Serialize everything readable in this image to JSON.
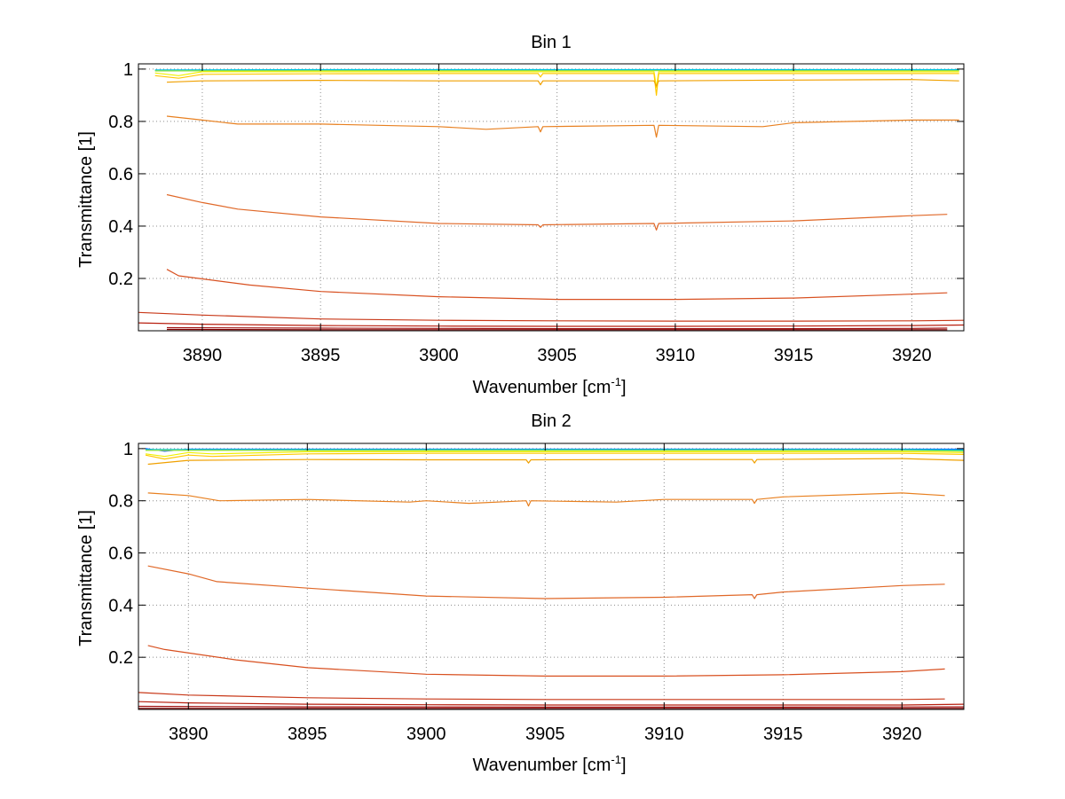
{
  "chart_data": [
    {
      "type": "line",
      "title": "Bin 1",
      "xlabel_main": "Wavenumber [cm",
      "xlabel_sup": "-1",
      "xlabel_end": "]",
      "ylabel": "Transmittance [1]",
      "xlim": [
        3887.3,
        3922.2
      ],
      "ylim": [
        0,
        1.02
      ],
      "xticks": [
        3890,
        3895,
        3900,
        3905,
        3910,
        3915,
        3920
      ],
      "yticks": [
        0.2,
        0.4,
        0.6,
        0.8,
        1
      ],
      "grid": true,
      "series": [
        {
          "color": "#00b4ff",
          "x": [
            3888,
            3895,
            3900,
            3905,
            3910,
            3915,
            3920,
            3922
          ],
          "y": [
            0.997,
            0.998,
            0.998,
            0.998,
            0.998,
            0.998,
            0.998,
            0.998
          ]
        },
        {
          "color": "#00d8c0",
          "x": [
            3888,
            3895,
            3900,
            3905,
            3910,
            3915,
            3920,
            3922
          ],
          "y": [
            0.995,
            0.996,
            0.996,
            0.996,
            0.996,
            0.996,
            0.996,
            0.996
          ]
        },
        {
          "color": "#a0e040",
          "x": [
            3888,
            3895,
            3900,
            3905,
            3910,
            3915,
            3920,
            3922
          ],
          "y": [
            0.993,
            0.994,
            0.994,
            0.994,
            0.994,
            0.994,
            0.994,
            0.994
          ]
        },
        {
          "color": "#f0f000",
          "x": [
            3888,
            3889,
            3890,
            3895,
            3900,
            3905,
            3909.1,
            3909.2,
            3909.3,
            3915,
            3920,
            3922
          ],
          "y": [
            0.985,
            0.975,
            0.99,
            0.99,
            0.99,
            0.99,
            0.99,
            0.93,
            0.99,
            0.99,
            0.99,
            0.99
          ]
        },
        {
          "color": "#ffc800",
          "x": [
            3888,
            3889,
            3890,
            3895,
            3900,
            3904.2,
            3904.3,
            3904.4,
            3909.1,
            3909.2,
            3909.3,
            3915,
            3920,
            3922
          ],
          "y": [
            0.975,
            0.965,
            0.98,
            0.982,
            0.983,
            0.983,
            0.97,
            0.983,
            0.983,
            0.9,
            0.983,
            0.983,
            0.983,
            0.983
          ]
        },
        {
          "color": "#f0a000",
          "x": [
            3888.5,
            3890,
            3895,
            3900,
            3904.2,
            3904.3,
            3904.4,
            3909.1,
            3909.2,
            3909.3,
            3915,
            3920,
            3922
          ],
          "y": [
            0.95,
            0.955,
            0.957,
            0.955,
            0.955,
            0.94,
            0.955,
            0.955,
            0.935,
            0.955,
            0.958,
            0.96,
            0.955
          ]
        },
        {
          "color": "#e88020",
          "x": [
            3888.5,
            3890,
            3891.5,
            3895,
            3900,
            3902,
            3904.2,
            3904.3,
            3904.4,
            3909.1,
            3909.2,
            3909.3,
            3913.7,
            3915,
            3920,
            3922
          ],
          "y": [
            0.82,
            0.805,
            0.79,
            0.79,
            0.78,
            0.77,
            0.78,
            0.76,
            0.78,
            0.785,
            0.74,
            0.785,
            0.78,
            0.795,
            0.805,
            0.805
          ]
        },
        {
          "color": "#e06828",
          "x": [
            3888.5,
            3890,
            3891.5,
            3895,
            3900,
            3904.2,
            3904.3,
            3904.4,
            3909.1,
            3909.2,
            3909.3,
            3915,
            3920,
            3921.5
          ],
          "y": [
            0.52,
            0.49,
            0.465,
            0.435,
            0.41,
            0.405,
            0.395,
            0.405,
            0.41,
            0.385,
            0.41,
            0.42,
            0.44,
            0.445
          ]
        },
        {
          "color": "#d85020",
          "x": [
            3888.5,
            3889,
            3892,
            3895,
            3900,
            3905,
            3910,
            3915,
            3920,
            3921.5
          ],
          "y": [
            0.235,
            0.21,
            0.175,
            0.15,
            0.13,
            0.12,
            0.12,
            0.125,
            0.14,
            0.145
          ]
        },
        {
          "color": "#c83818",
          "x": [
            3887.3,
            3890,
            3895,
            3900,
            3905,
            3910,
            3915,
            3920,
            3922.2
          ],
          "y": [
            0.07,
            0.06,
            0.045,
            0.04,
            0.038,
            0.037,
            0.037,
            0.038,
            0.04
          ]
        },
        {
          "color": "#b82010",
          "x": [
            3887.3,
            3890,
            3895,
            3900,
            3905,
            3910,
            3915,
            3920,
            3922.2
          ],
          "y": [
            0.03,
            0.025,
            0.02,
            0.018,
            0.017,
            0.017,
            0.018,
            0.02,
            0.022
          ]
        },
        {
          "color": "#a01010",
          "x": [
            3888.5,
            3895,
            3900,
            3905,
            3910,
            3915,
            3920,
            3921.5
          ],
          "y": [
            0.012,
            0.01,
            0.009,
            0.008,
            0.008,
            0.008,
            0.009,
            0.01
          ]
        },
        {
          "color": "#800000",
          "x": [
            3888.5,
            3895,
            3905,
            3915,
            3921.5
          ],
          "y": [
            0.005,
            0.004,
            0.004,
            0.004,
            0.004
          ]
        }
      ]
    },
    {
      "type": "line",
      "title": "Bin 2",
      "xlabel_main": "Wavenumber [cm",
      "xlabel_sup": "-1",
      "xlabel_end": "]",
      "ylabel": "Transmittance [1]",
      "xlim": [
        3887.9,
        3922.6
      ],
      "ylim": [
        0,
        1.02
      ],
      "xticks": [
        3890,
        3895,
        3900,
        3905,
        3910,
        3915,
        3920
      ],
      "yticks": [
        0.2,
        0.4,
        0.6,
        0.8,
        1
      ],
      "grid": true,
      "series": [
        {
          "color": "#0050ff",
          "x": [
            3888.2,
            3889,
            3890,
            3895,
            3900,
            3905,
            3910,
            3915,
            3920,
            3922.6
          ],
          "y": [
            1.0,
            0.99,
            0.998,
            0.998,
            0.998,
            0.998,
            0.998,
            0.998,
            0.998,
            0.998
          ]
        },
        {
          "color": "#00b4ff",
          "x": [
            3888.2,
            3895,
            3900,
            3905,
            3910,
            3915,
            3920,
            3922.6
          ],
          "y": [
            0.997,
            0.997,
            0.997,
            0.997,
            0.997,
            0.997,
            0.997,
            0.995
          ]
        },
        {
          "color": "#00d8c0",
          "x": [
            3888.2,
            3895,
            3900,
            3905,
            3910,
            3915,
            3920,
            3922.6
          ],
          "y": [
            0.995,
            0.995,
            0.995,
            0.995,
            0.995,
            0.995,
            0.995,
            0.993
          ]
        },
        {
          "color": "#a0e040",
          "x": [
            3888.2,
            3895,
            3900,
            3905,
            3910,
            3915,
            3920,
            3922.6
          ],
          "y": [
            0.993,
            0.993,
            0.993,
            0.993,
            0.993,
            0.993,
            0.993,
            0.99
          ]
        },
        {
          "color": "#f0f000",
          "x": [
            3888.2,
            3889,
            3890,
            3891,
            3895,
            3900,
            3905,
            3910,
            3915,
            3920,
            3922.6
          ],
          "y": [
            0.98,
            0.97,
            0.985,
            0.98,
            0.988,
            0.988,
            0.988,
            0.988,
            0.988,
            0.988,
            0.985
          ]
        },
        {
          "color": "#ffc800",
          "x": [
            3888.2,
            3889,
            3890,
            3891,
            3895,
            3900,
            3905,
            3910,
            3915,
            3920,
            3922.6
          ],
          "y": [
            0.975,
            0.96,
            0.975,
            0.97,
            0.98,
            0.982,
            0.982,
            0.982,
            0.982,
            0.982,
            0.978
          ]
        },
        {
          "color": "#f0a000",
          "x": [
            3888.3,
            3890,
            3895,
            3900,
            3904.2,
            3904.3,
            3904.4,
            3910,
            3913.7,
            3913.8,
            3913.9,
            3920,
            3922.6
          ],
          "y": [
            0.94,
            0.955,
            0.958,
            0.957,
            0.957,
            0.945,
            0.957,
            0.958,
            0.958,
            0.945,
            0.958,
            0.962,
            0.955
          ]
        },
        {
          "color": "#e88020",
          "x": [
            3888.3,
            3890,
            3891.3,
            3895,
            3899.3,
            3900,
            3901.8,
            3904.2,
            3904.3,
            3904.4,
            3908,
            3910,
            3913.7,
            3913.8,
            3913.9,
            3915,
            3920,
            3921.8
          ],
          "y": [
            0.83,
            0.82,
            0.8,
            0.805,
            0.795,
            0.8,
            0.79,
            0.8,
            0.78,
            0.8,
            0.795,
            0.805,
            0.805,
            0.79,
            0.805,
            0.815,
            0.83,
            0.82
          ]
        },
        {
          "color": "#e06828",
          "x": [
            3888.3,
            3890,
            3891.2,
            3895,
            3900,
            3905,
            3910,
            3913.7,
            3913.8,
            3913.9,
            3915,
            3920,
            3921.8
          ],
          "y": [
            0.55,
            0.52,
            0.49,
            0.465,
            0.435,
            0.425,
            0.43,
            0.44,
            0.425,
            0.44,
            0.45,
            0.475,
            0.48
          ]
        },
        {
          "color": "#d85020",
          "x": [
            3888.3,
            3889,
            3892,
            3895,
            3900,
            3905,
            3910,
            3915,
            3920,
            3921.8
          ],
          "y": [
            0.245,
            0.23,
            0.19,
            0.16,
            0.135,
            0.128,
            0.128,
            0.133,
            0.145,
            0.155
          ]
        },
        {
          "color": "#c83818",
          "x": [
            3887.9,
            3890,
            3895,
            3900,
            3905,
            3910,
            3915,
            3920,
            3921.8
          ],
          "y": [
            0.065,
            0.055,
            0.045,
            0.04,
            0.038,
            0.038,
            0.038,
            0.038,
            0.04
          ]
        },
        {
          "color": "#b82010",
          "x": [
            3887.9,
            3890,
            3895,
            3900,
            3905,
            3910,
            3915,
            3920,
            3922.6
          ],
          "y": [
            0.03,
            0.025,
            0.02,
            0.018,
            0.017,
            0.017,
            0.017,
            0.017,
            0.02
          ]
        },
        {
          "color": "#a01010",
          "x": [
            3887.9,
            3895,
            3905,
            3915,
            3922.6
          ],
          "y": [
            0.012,
            0.01,
            0.009,
            0.009,
            0.01
          ]
        },
        {
          "color": "#800000",
          "x": [
            3887.9,
            3895,
            3905,
            3915,
            3922.6
          ],
          "y": [
            0.004,
            0.004,
            0.004,
            0.004,
            0.004
          ]
        }
      ]
    }
  ]
}
